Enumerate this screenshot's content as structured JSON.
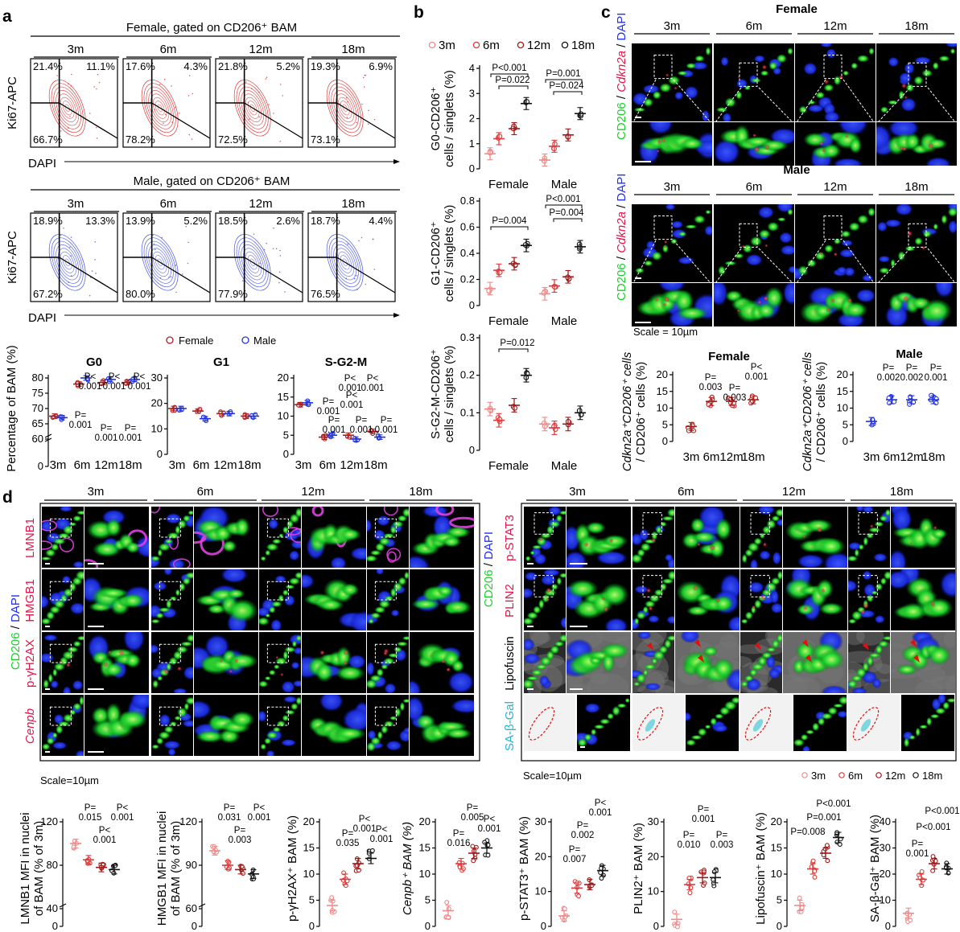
{
  "colors": {
    "age_3m": "#f08a8a",
    "age_6m": "#e03a3a",
    "age_12m": "#a01818",
    "age_18m": "#111111",
    "female": "#b01c1c",
    "male": "#2233dd",
    "female_contour": "#d42020",
    "male_contour": "#3340e0",
    "cd206": "#19d22a",
    "dapi": "#1f2fff",
    "marker_red": "#e0184a"
  },
  "panel_a": {
    "label": "a",
    "female_title": "Female, gated on CD206⁺ BAM",
    "male_title": "Male, gated on CD206⁺ BAM",
    "ages": [
      "3m",
      "6m",
      "12m",
      "18m"
    ],
    "ylabel": "Ki67-APC",
    "xlabel": "DAPI",
    "female_quadrants": [
      {
        "g0": "66.7%",
        "g1": "21.4%",
        "sg2m": "11.1%"
      },
      {
        "g0": "78.2%",
        "g1": "17.6%",
        "sg2m": "4.3%"
      },
      {
        "g0": "72.5%",
        "g1": "21.8%",
        "sg2m": "5.2%"
      },
      {
        "g0": "73.1%",
        "g1": "19.3%",
        "sg2m": "6.9%"
      }
    ],
    "male_quadrants": [
      {
        "g0": "67.2%",
        "g1": "18.9%",
        "sg2m": "13.3%"
      },
      {
        "g0": "80.0%",
        "g1": "13.9%",
        "sg2m": "5.2%"
      },
      {
        "g0": "77.9%",
        "g1": "18.5%",
        "sg2m": "2.6%"
      },
      {
        "g0": "76.5%",
        "g1": "18.7%",
        "sg2m": "4.4%"
      }
    ],
    "legend": [
      "Female",
      "Male"
    ],
    "summary_ylabel": "Percentage of BAM (%)"
  },
  "panel_b": {
    "label": "b",
    "legend": [
      "3m",
      "6m",
      "12m",
      "18m"
    ],
    "groups": [
      "Female",
      "Male"
    ]
  },
  "panel_c": {
    "label": "c",
    "female_title": "Female",
    "male_title": "Male",
    "ages": [
      "3m",
      "6m",
      "12m",
      "18m"
    ],
    "stain_cd206": "CD206",
    "stain_cdkn2a": "Cdkn2a",
    "stain_dapi": "DAPI",
    "separator": " / ",
    "scale": "Scale = 10µm",
    "ylabel_line1": "Cdkn2a⁺CD206⁺ cells",
    "ylabel_line2": "/ CD206⁺ cells (%)"
  },
  "panel_d": {
    "label": "d",
    "ages": [
      "3m",
      "6m",
      "12m",
      "18m"
    ],
    "left_rows": [
      "LMNB1",
      "HMGB1",
      "p-γH2AX",
      "Cenpb"
    ],
    "right_rows": [
      "p-STAT3",
      "PLIN2",
      "Lipofuscin",
      "SA-β-Gal"
    ],
    "stain_cd206": "CD206",
    "stain_dapi": "DAPI",
    "scale_left": "Scale=10µm",
    "scale_right": "Scale=10µm",
    "legend": [
      "3m",
      "6m",
      "12m",
      "18m"
    ]
  },
  "chart_data": [
    {
      "id": "a_g0",
      "type": "scatter",
      "title": "G0",
      "ylabel": "Percentage of BAM (%)",
      "categories": [
        "3m",
        "6m",
        "12m",
        "18m"
      ],
      "yticks": [
        0,
        60,
        65,
        70,
        75,
        80
      ],
      "ylim": [
        0,
        80
      ],
      "series": [
        {
          "name": "Female",
          "means": [
            67.5,
            78,
            78.5,
            78.5
          ]
        },
        {
          "name": "Male",
          "means": [
            67,
            80,
            79.5,
            79.5
          ]
        }
      ],
      "annotations": [
        "P=\n0.001",
        "P<\n0.001",
        "P<\n0.001",
        "P<\n0.001",
        "P=\n0.001",
        "P=\n0.001"
      ]
    },
    {
      "id": "a_g1",
      "type": "scatter",
      "title": "G1",
      "categories": [
        "3m",
        "6m",
        "12m",
        "18m"
      ],
      "yticks": [
        0,
        10,
        20,
        30
      ],
      "ylim": [
        0,
        30
      ],
      "series": [
        {
          "name": "Female",
          "means": [
            18,
            17,
            16,
            15
          ]
        },
        {
          "name": "Male",
          "means": [
            18,
            14,
            16,
            15
          ]
        }
      ]
    },
    {
      "id": "a_sg2m",
      "type": "scatter",
      "title": "S-G2-M",
      "categories": [
        "3m",
        "6m",
        "12m",
        "18m"
      ],
      "yticks": [
        0,
        5,
        10,
        15,
        20
      ],
      "ylim": [
        0,
        20
      ],
      "series": [
        {
          "name": "Female",
          "means": [
            13,
            4.5,
            5,
            6
          ]
        },
        {
          "name": "Male",
          "means": [
            13.5,
            5,
            4,
            4.5
          ]
        }
      ],
      "annotations": [
        "P=\n0.001",
        "P<\n0.001",
        "P<\n0.001",
        "P<\n0.001",
        "P=\n0.001",
        "P=\n0.001",
        "P=\n0.001"
      ]
    },
    {
      "id": "b_g0",
      "type": "scatter",
      "ylabel": "G0-CD206⁺\ncells / singlets (%)",
      "categories": [
        "Female",
        "Male"
      ],
      "yticks": [
        0,
        1,
        2,
        3,
        4
      ],
      "ylim": [
        0,
        4
      ],
      "means": [
        [
          0.6,
          1.2,
          1.6,
          2.6
        ],
        [
          0.35,
          0.9,
          1.35,
          2.2
        ]
      ],
      "annotations": [
        "P<0.001",
        "P=0.022",
        "P=0.001",
        "P=0.024"
      ]
    },
    {
      "id": "b_g1",
      "type": "scatter",
      "ylabel": "G1-CD206⁺\ncells / singlets (%)",
      "categories": [
        "Female",
        "Male"
      ],
      "yticks": [
        0,
        0.2,
        0.4,
        0.6,
        0.8
      ],
      "ylim": [
        0,
        0.8
      ],
      "means": [
        [
          0.13,
          0.27,
          0.32,
          0.46
        ],
        [
          0.09,
          0.15,
          0.22,
          0.45
        ]
      ],
      "annotations": [
        "P=0.004",
        "P<0.001",
        "P=0.004"
      ]
    },
    {
      "id": "b_sg2m",
      "type": "scatter",
      "ylabel": "S-G2-M-CD206⁺\ncells / singlets (%)",
      "categories": [
        "Female",
        "Male"
      ],
      "yticks": [
        0,
        0.1,
        0.2,
        0.3
      ],
      "ylim": [
        0,
        0.3
      ],
      "means": [
        [
          0.11,
          0.08,
          0.12,
          0.2
        ],
        [
          0.07,
          0.06,
          0.07,
          0.1
        ]
      ],
      "annotations": [
        "P=0.012"
      ]
    },
    {
      "id": "c_female",
      "type": "scatter",
      "title": "Female",
      "categories": [
        "3m",
        "6m",
        "12m",
        "18m"
      ],
      "yticks": [
        0,
        5,
        10,
        15,
        20
      ],
      "ylim": [
        0,
        20
      ],
      "means": [
        4.5,
        12,
        12,
        12.5
      ],
      "annotations": [
        "P=\n0.003",
        "P=\n0.003",
        "P<\n0.001"
      ]
    },
    {
      "id": "c_male",
      "type": "scatter",
      "title": "Male",
      "categories": [
        "3m",
        "6m",
        "12m",
        "18m"
      ],
      "yticks": [
        0,
        5,
        10,
        15,
        20
      ],
      "ylim": [
        0,
        20
      ],
      "means": [
        6,
        12.5,
        12.5,
        12.5
      ],
      "annotations": [
        "P=\n0.002",
        "P=\n0.002",
        "P=\n0.001"
      ]
    },
    {
      "id": "d_lmnb1",
      "type": "scatter",
      "ylabel": "LMNB1 MFI in nuclei\nof BAM (% of 3m)",
      "yticks": [
        0,
        40,
        80,
        120
      ],
      "ylim": [
        0,
        120
      ],
      "means": [
        100,
        85,
        78,
        76
      ],
      "annotations": [
        "P=\n0.015",
        "P<\n0.001",
        "P<\n0.001"
      ]
    },
    {
      "id": "d_hmgb1",
      "type": "scatter",
      "ylabel": "HMGB1 MFI in nuclei\nof BAM (% of 3m)",
      "yticks": [
        0,
        60,
        90,
        120
      ],
      "ylim": [
        0,
        120
      ],
      "means": [
        100,
        90,
        87,
        84
      ],
      "annotations": [
        "P=\n0.031",
        "P=\n0.003",
        "P<\n0.001"
      ]
    },
    {
      "id": "d_gh2ax",
      "type": "scatter",
      "ylabel": "p-γH2AX⁺ BAM (%)",
      "yticks": [
        0,
        5,
        10,
        15,
        20
      ],
      "ylim": [
        0,
        20
      ],
      "means": [
        4,
        9,
        12,
        13
      ],
      "annotations": [
        "P=\n0.035",
        "P<\n0.001",
        "P<\n0.001"
      ]
    },
    {
      "id": "d_cenpb",
      "type": "scatter",
      "ylabel": "Cenpb⁺ BAM (%)",
      "yticks": [
        0,
        5,
        10,
        15,
        20
      ],
      "ylim": [
        0,
        20
      ],
      "means": [
        3,
        12,
        14,
        15
      ],
      "annotations": [
        "P=\n0.016",
        "P=\n0.005",
        "P<\n0.001"
      ]
    },
    {
      "id": "d_pstat3",
      "type": "scatter",
      "ylabel": "p-STAT3⁺ BAM (%)",
      "yticks": [
        0,
        10,
        20,
        30
      ],
      "ylim": [
        0,
        30
      ],
      "means": [
        3,
        11,
        12,
        16
      ],
      "annotations": [
        "P=\n0.007",
        "P=\n0.002",
        "P<\n0.001"
      ]
    },
    {
      "id": "d_plin2",
      "type": "scatter",
      "ylabel": "PLIN2⁺ BAM (%)",
      "yticks": [
        0,
        10,
        20,
        30
      ],
      "ylim": [
        0,
        30
      ],
      "means": [
        2,
        12,
        14,
        14
      ],
      "annotations": [
        "P=\n0.010",
        "P=\n0.001",
        "P=\n0.003"
      ]
    },
    {
      "id": "d_lipo",
      "type": "scatter",
      "ylabel": "Lipofuscin⁺ BAM (%)",
      "yticks": [
        0,
        5,
        10,
        15,
        20
      ],
      "ylim": [
        0,
        20
      ],
      "means": [
        4,
        11,
        14,
        17
      ],
      "annotations": [
        "P=0.008",
        "P=0.001",
        "P<0.001"
      ]
    },
    {
      "id": "d_sabgal",
      "type": "scatter",
      "ylabel": "SA-β-Gal⁺ BAM (%)",
      "yticks": [
        0,
        10,
        20,
        30,
        40
      ],
      "ylim": [
        0,
        40
      ],
      "means": [
        5,
        18,
        24,
        22
      ],
      "annotations": [
        "P=\n0.001",
        "P<0.001",
        "P<0.001"
      ]
    }
  ]
}
